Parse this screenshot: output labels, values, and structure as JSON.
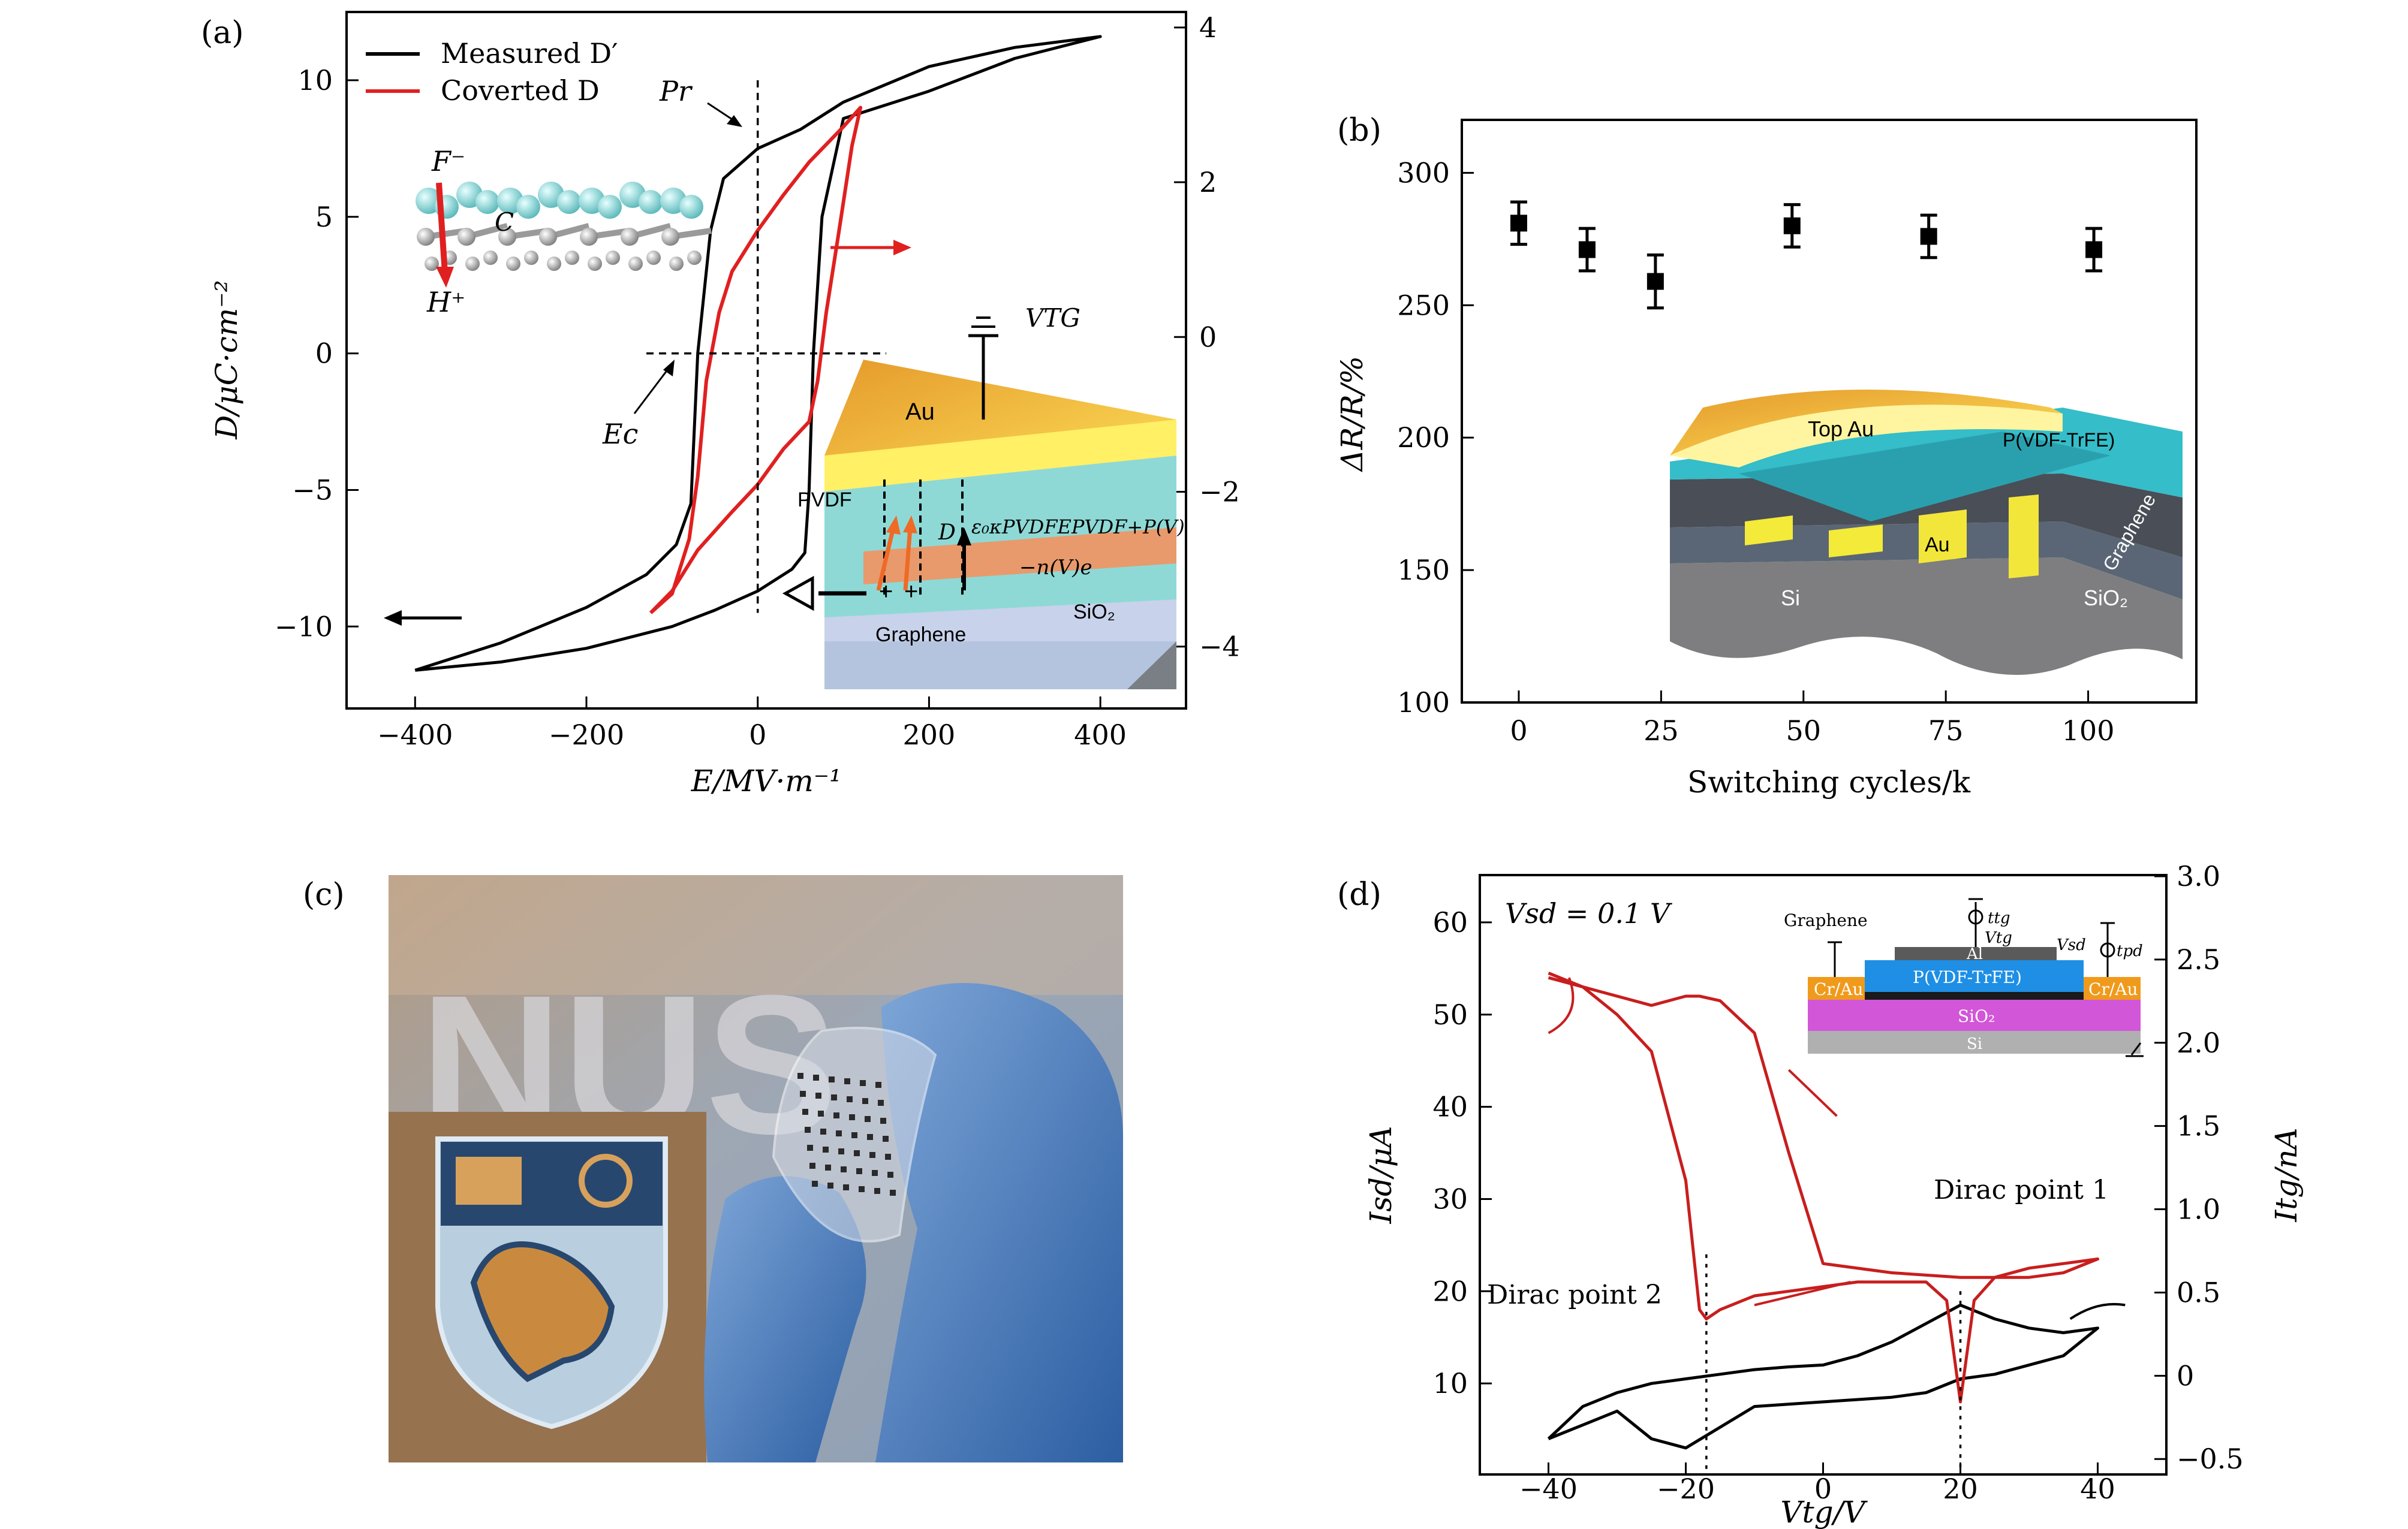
{
  "chart_data": [
    {
      "panel": "(a)",
      "type": "line",
      "xlabel": "E/MV·m⁻¹",
      "ylabel": "D/μC·cm⁻²",
      "xlim": [
        -480,
        500
      ],
      "ylim": [
        -13,
        12.5
      ],
      "xticks": [
        -400,
        -200,
        0,
        200,
        400
      ],
      "xtick_labels": [
        "−400",
        "−200",
        "0",
        "200",
        "400"
      ],
      "yticks": [
        -10,
        -5,
        0,
        5,
        10
      ],
      "ytick_labels": [
        "−10",
        "−5",
        "0",
        "5",
        "10"
      ],
      "y2ticks": [
        -4,
        -2,
        0,
        2,
        4
      ],
      "y2tick_labels": [
        "−4",
        "−2",
        "0",
        "2",
        "4"
      ],
      "legend": {
        "position": "top-left",
        "entries": [
          {
            "label": "Measured D′",
            "color": "#000000"
          },
          {
            "label": "Coverted D",
            "color": "#e02020"
          }
        ]
      },
      "series": [
        {
          "name": "Measured D′",
          "color": "#000000",
          "x": [
            -400,
            -300,
            -200,
            -130,
            -95,
            -78,
            -70,
            -55,
            -40,
            0,
            50,
            100,
            200,
            300,
            400,
            300,
            200,
            100,
            75,
            65,
            60,
            55,
            40,
            0,
            -50,
            -100,
            -200,
            -300,
            -400
          ],
          "y": [
            -11.6,
            -10.6,
            -9.3,
            -8.1,
            -7.0,
            -5.5,
            0,
            4.5,
            6.4,
            7.5,
            8.2,
            9.2,
            10.5,
            11.2,
            11.6,
            10.8,
            9.6,
            8.6,
            5.0,
            0,
            -5.0,
            -7.3,
            -7.9,
            -8.7,
            -9.4,
            -10.0,
            -10.8,
            -11.3,
            -11.6
          ]
        },
        {
          "name": "Coverted D",
          "color": "#e02020",
          "x": [
            -125,
            -100,
            -80,
            -70,
            -60,
            -45,
            -30,
            0,
            30,
            60,
            100,
            120,
            110,
            95,
            80,
            70,
            60,
            30,
            0,
            -30,
            -70,
            -100,
            -125
          ],
          "y": [
            -9.5,
            -8.8,
            -6.8,
            -4.5,
            -1.0,
            1.5,
            3.0,
            4.5,
            5.8,
            7.0,
            8.3,
            9.0,
            7.6,
            4.5,
            1.5,
            -1.0,
            -2.5,
            -3.5,
            -4.8,
            -5.8,
            -7.2,
            -8.7,
            -9.5
          ]
        }
      ],
      "annotations": [
        "Pr",
        "Ec",
        "F⁻",
        "H⁺",
        "C",
        "VTG",
        "Au",
        "PVDF",
        "D",
        "ε₀κPVDFEPVDF+P(V)",
        "−n(V)e",
        "SiO₂",
        "Graphene"
      ]
    },
    {
      "panel": "(b)",
      "type": "scatter",
      "xlabel": "Switching cycles/k",
      "ylabel": "ΔR/R/%",
      "xlim": [
        -10,
        119
      ],
      "ylim": [
        100,
        320
      ],
      "xticks": [
        0,
        25,
        50,
        75,
        100
      ],
      "yticks": [
        100,
        150,
        200,
        250,
        300
      ],
      "x": [
        0,
        12,
        24,
        48,
        72,
        101
      ],
      "y": [
        281,
        271,
        259,
        280,
        276,
        271
      ],
      "yerr": [
        8,
        8,
        10,
        8,
        8,
        8
      ],
      "inset_labels": [
        "Top Au",
        "P(VDF-TrFE)",
        "Au",
        "Graphene",
        "Si",
        "SiO₂"
      ]
    },
    {
      "panel": "(d)",
      "type": "line",
      "xlabel": "Vtg/V",
      "ylabel": "Isd/μA",
      "y2label": "Itg/nA",
      "xlim": [
        -50,
        50
      ],
      "ylim": [
        0,
        65
      ],
      "xticks": [
        -40,
        -20,
        0,
        20,
        40
      ],
      "xtick_labels": [
        "−40",
        "−20",
        "0",
        "20",
        "40"
      ],
      "yticks": [
        10,
        20,
        30,
        40,
        50,
        60
      ],
      "y2lim": [
        -0.6,
        3.0
      ],
      "y2ticks": [
        -0.5,
        0,
        0.5,
        1.0,
        1.5,
        2.0,
        2.5,
        3.0
      ],
      "y2tick_labels": [
        "−0.5",
        "0",
        "0.5",
        "1.0",
        "1.5",
        "2.0",
        "2.5",
        "3.0"
      ],
      "condition": "Vsd = 0.1 V",
      "series": [
        {
          "name": "Isd",
          "color": "#000000",
          "x": [
            -40,
            -35,
            -30,
            -25,
            -20,
            -15,
            -10,
            -5,
            0,
            5,
            10,
            15,
            20,
            25,
            30,
            35,
            40,
            35,
            30,
            25,
            20,
            15,
            10,
            0,
            -10,
            -20,
            -25,
            -30,
            -35,
            -40
          ],
          "y": [
            4,
            7.5,
            9,
            10,
            10.5,
            11,
            11.5,
            11.8,
            12,
            13,
            14.5,
            16.5,
            18.5,
            17,
            16,
            15.5,
            16,
            13,
            12,
            11,
            10.5,
            9,
            8.5,
            8,
            7.5,
            3,
            4,
            7,
            5.5,
            4
          ]
        },
        {
          "name": "Itg",
          "color": "#c81e1e",
          "x": [
            -40,
            -35,
            -30,
            -25,
            -20,
            -18,
            -17,
            -15,
            -10,
            -5,
            0,
            5,
            10,
            15,
            18,
            20,
            22,
            25,
            30,
            35,
            40,
            35,
            30,
            20,
            10,
            0,
            -5,
            -10,
            -15,
            -18,
            -20,
            -25,
            -35,
            -40
          ],
          "y": [
            54,
            53,
            50,
            46,
            32,
            18,
            17,
            18,
            19.5,
            20,
            20.5,
            21,
            21,
            21,
            19,
            8,
            19,
            21.5,
            22.5,
            23,
            23.5,
            22,
            21.5,
            21.5,
            22,
            23,
            35,
            48,
            51.5,
            52,
            52,
            51,
            53,
            54.5
          ]
        }
      ],
      "annotations": [
        "Dirac point 1",
        "Dirac point 2"
      ],
      "inset_labels": [
        "Graphene",
        "ttg",
        "Vtg",
        "Vsd",
        "tpd",
        "Al",
        "P(VDF-TrFE)",
        "Cr/Au",
        "Cr/Au",
        "SiO₂",
        "Si"
      ]
    }
  ],
  "panel_labels": {
    "a": "(a)",
    "b": "(b)",
    "c": "(c)",
    "d": "(d)"
  },
  "photo_c": {
    "background_text": "NUS"
  },
  "colors": {
    "red": "#e02020",
    "black": "#000000",
    "gold": "#f2b233",
    "teal": "#6ad3d3",
    "purple": "#d57ad9"
  }
}
